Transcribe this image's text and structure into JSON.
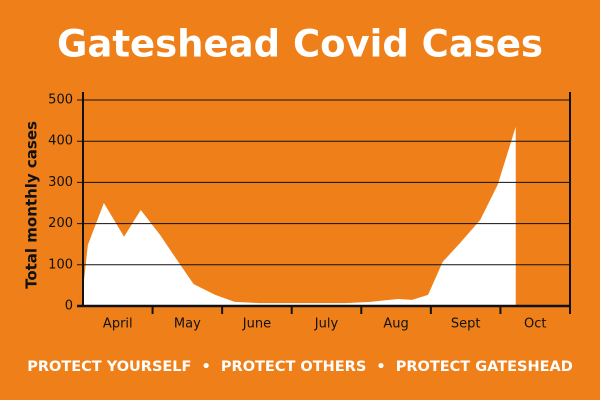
{
  "chart_data": {
    "type": "area",
    "title": "Gateshead Covid Cases",
    "y_label": "Total monthly cases",
    "annotation": "PROTECT YOURSELF  •  PROTECT OTHERS  •  PROTECT GATESHEAD",
    "x": [
      0,
      0.07,
      0.3,
      0.59,
      0.83,
      1.11,
      1.37,
      1.59,
      1.9,
      2.18,
      2.54,
      2.97,
      3.41,
      3.77,
      4.13,
      4.53,
      4.73,
      4.96,
      5.17,
      5.42,
      5.71,
      5.96,
      6.22
    ],
    "values": [
      40,
      148,
      250,
      168,
      233,
      172,
      107,
      53,
      27,
      10,
      7,
      7,
      7,
      7,
      10,
      17,
      15,
      27,
      107,
      153,
      209,
      294,
      435
    ],
    "color": "#ffffff",
    "background": "#ef8019",
    "xlim": [
      0,
      7
    ],
    "xticks": [
      {
        "value": 0.5,
        "label": "April"
      },
      {
        "value": 1.5,
        "label": "May"
      },
      {
        "value": 2.5,
        "label": "June"
      },
      {
        "value": 3.5,
        "label": "July"
      },
      {
        "value": 4.5,
        "label": "Aug"
      },
      {
        "value": 5.5,
        "label": "Sept"
      },
      {
        "value": 6.5,
        "label": "Oct"
      }
    ],
    "ylim": [
      0,
      500
    ],
    "yticks": [
      0,
      100,
      200,
      300,
      400,
      500
    ],
    "grid": true
  }
}
